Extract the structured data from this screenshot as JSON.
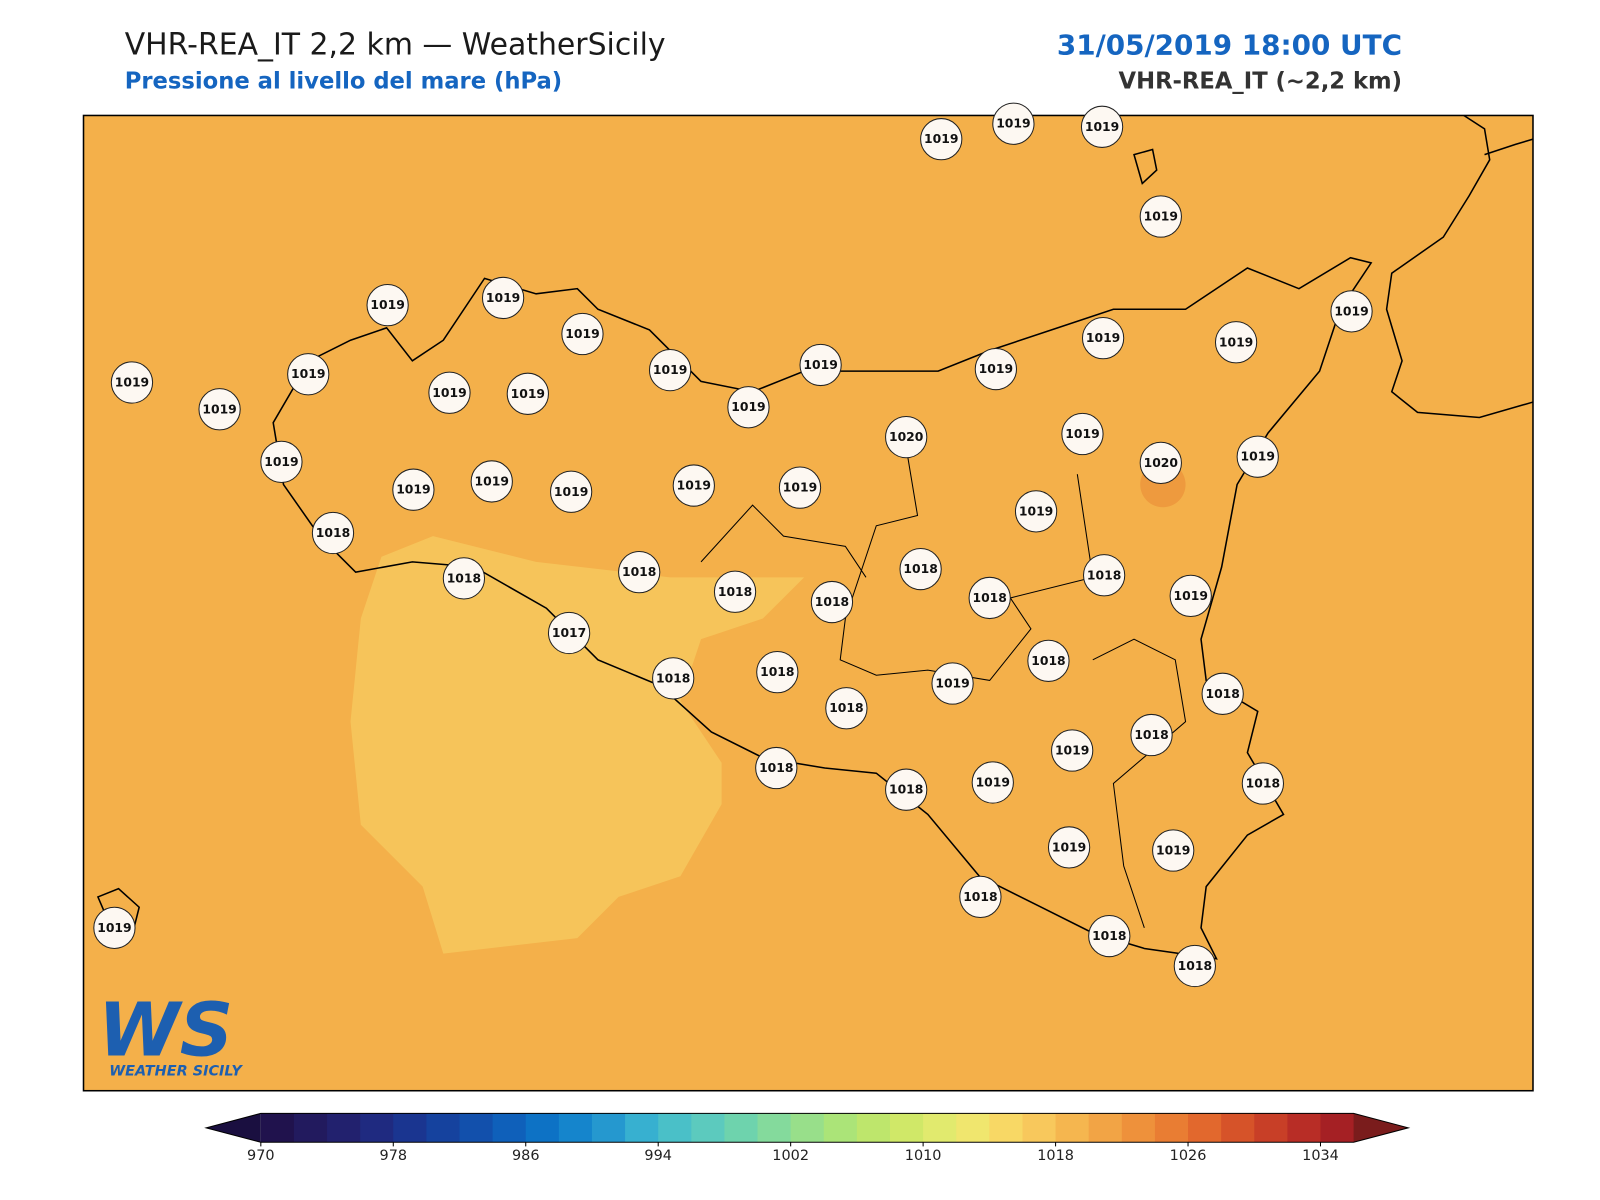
{
  "header": {
    "title": "VHR-REA_IT 2,2 km — WeatherSicily",
    "subtitle": "Pressione al livello del mare (hPa)",
    "datetime": "31/05/2019 18:00 UTC",
    "model": "VHR-REA_IT (~2,2 km)"
  },
  "logo": {
    "mark": "WS",
    "text": "WEATHER SICILY"
  },
  "stations": [
    1019,
    1019,
    1019,
    1019,
    1019,
    1019,
    1019,
    1019,
    1019,
    1019,
    1019,
    1019,
    1019,
    1019,
    1019,
    1019,
    1019,
    1019,
    1019,
    1020,
    1019,
    1020,
    1019,
    1019,
    1019,
    1019,
    1019,
    1019,
    1019,
    1019,
    1018,
    1018,
    1018,
    1018,
    1018,
    1018,
    1018,
    1018,
    1019,
    1017,
    1018,
    1018,
    1018,
    1019,
    1018,
    1018,
    1019,
    1018,
    1018,
    1018,
    1019,
    1018,
    1019,
    1019,
    1018,
    1018,
    1018,
    1019
  ],
  "colorbar": {
    "lim": [
      970,
      1036
    ],
    "ticks": [
      970,
      978,
      986,
      994,
      1002,
      1010,
      1018,
      1026,
      1034
    ],
    "under_color": "#1a0f40",
    "over_color": "#7a1c1c",
    "colors": [
      "#20124d",
      "#221a5e",
      "#22216e",
      "#1f2a80",
      "#1a3590",
      "#15429e",
      "#1250ac",
      "#0f60ba",
      "#0d72c5",
      "#1585cc",
      "#2598cf",
      "#37b0d0",
      "#4ac0c8",
      "#5ccabe",
      "#6ed3ad",
      "#84da9c",
      "#98df8a",
      "#abe478",
      "#bee66c",
      "#d0e868",
      "#e1ea6e",
      "#f0e66e",
      "#f8d865",
      "#f8c85c",
      "#f5b64f",
      "#f2a445",
      "#ee913b",
      "#e97d33",
      "#e2682d",
      "#d65329",
      "#c83f27",
      "#b82d26",
      "#a52024"
    ]
  }
}
